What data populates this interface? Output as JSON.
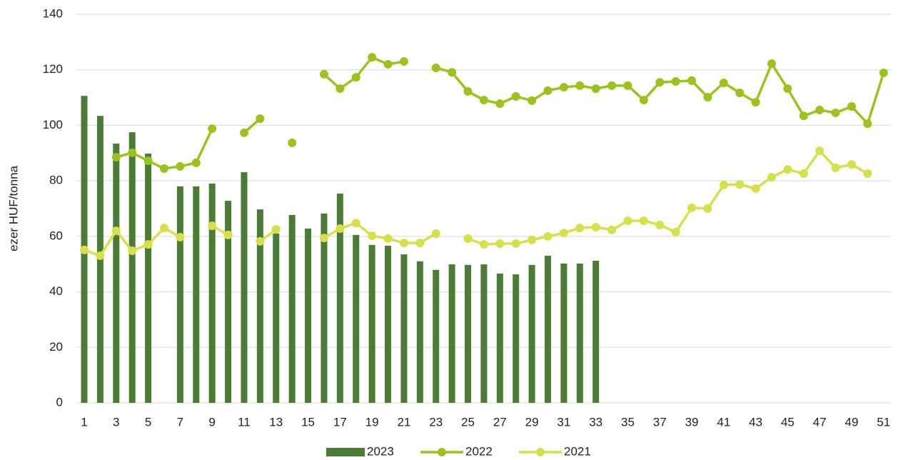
{
  "chart_data": {
    "type": "bar_line",
    "y_label": "ezer HUF/tonna",
    "categories": [
      1,
      null,
      3,
      null,
      5,
      null,
      7,
      null,
      9,
      null,
      11,
      null,
      13,
      null,
      15,
      null,
      17,
      null,
      19,
      null,
      21,
      null,
      23,
      null,
      25,
      null,
      27,
      null,
      29,
      null,
      31,
      null,
      33,
      null,
      35,
      null,
      37,
      null,
      39,
      null,
      41,
      null,
      43,
      null,
      45,
      null,
      47,
      null,
      49,
      null,
      51
    ],
    "ylim": [
      0,
      140
    ],
    "yticks": [
      0,
      20,
      40,
      60,
      80,
      100,
      120,
      140
    ],
    "grid": true,
    "legend": "bottom",
    "series": [
      {
        "name": "2023",
        "type": "bar",
        "color": "#4a7c36",
        "values": [
          110.6,
          103.4,
          93.4,
          97.5,
          89.8,
          null,
          78.0,
          78.0,
          79.0,
          72.8,
          83.1,
          69.7,
          61.0,
          67.7,
          62.8,
          68.2,
          75.4,
          60.5,
          56.9,
          56.6,
          53.5,
          51.0,
          47.9,
          49.9,
          49.7,
          49.9,
          46.6,
          46.3,
          49.7,
          53.0,
          50.2,
          50.2,
          51.2,
          null,
          null,
          null,
          null,
          null,
          null,
          null,
          null,
          null,
          null,
          null,
          null,
          null,
          null,
          null,
          null,
          null,
          null
        ]
      },
      {
        "name": "2022",
        "type": "line",
        "color": "#9cc31c",
        "values": [
          null,
          null,
          88.5,
          90.1,
          87.2,
          84.4,
          85.2,
          86.5,
          98.8,
          null,
          97.3,
          102.4,
          null,
          93.7,
          null,
          118.4,
          113.2,
          117.3,
          124.5,
          122.0,
          123.0,
          null,
          120.7,
          119.1,
          112.2,
          109.1,
          107.8,
          110.4,
          108.9,
          112.5,
          113.7,
          114.3,
          113.2,
          114.3,
          114.3,
          109.1,
          115.5,
          115.8,
          116.1,
          110.1,
          115.3,
          111.7,
          108.3,
          122.2,
          113.2,
          103.4,
          105.5,
          104.5,
          106.8,
          100.6,
          118.9
        ]
      },
      {
        "name": "2021",
        "type": "line",
        "color": "#d6e04a",
        "values": [
          55.1,
          53.0,
          62.0,
          54.8,
          57.1,
          63.0,
          59.7,
          null,
          63.8,
          60.5,
          null,
          58.2,
          62.5,
          null,
          null,
          59.4,
          62.8,
          64.8,
          60.2,
          59.2,
          57.6,
          57.6,
          61.0,
          null,
          59.2,
          57.1,
          57.4,
          57.4,
          58.7,
          60.0,
          61.2,
          63.0,
          63.3,
          62.3,
          65.6,
          65.6,
          64.1,
          61.5,
          70.3,
          70.0,
          78.5,
          78.7,
          77.2,
          81.3,
          84.1,
          82.6,
          90.8,
          84.7,
          85.9,
          82.6,
          null
        ]
      }
    ]
  }
}
